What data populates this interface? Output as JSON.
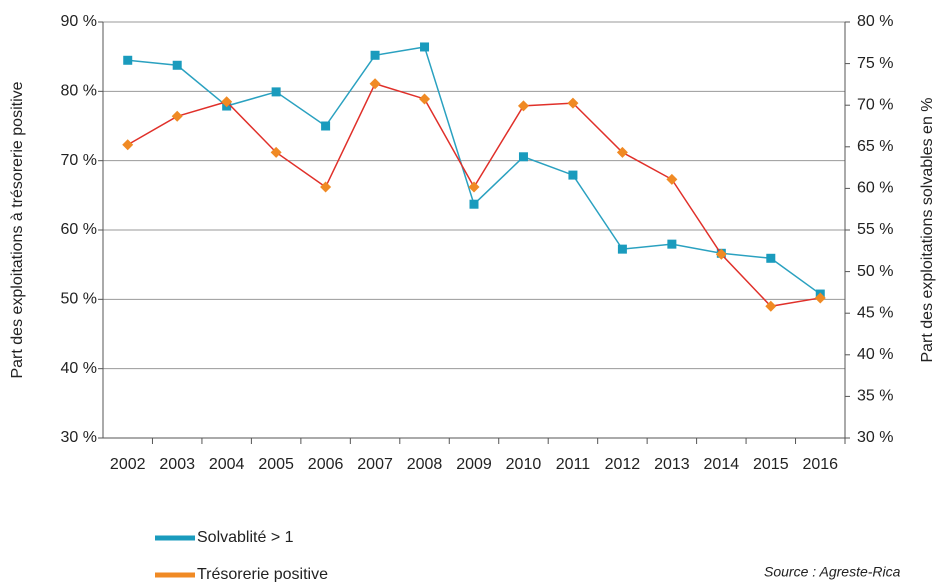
{
  "chart_data": {
    "type": "line",
    "y_label": "Part des exploitations à trésorerie positive",
    "y2_label": "Part des exploitations solvables en %",
    "source": "Source : Agreste-Rica",
    "categories": [
      "2002",
      "2003",
      "2004",
      "2005",
      "2006",
      "2007",
      "2008",
      "2009",
      "2010",
      "2011",
      "2012",
      "2013",
      "2014",
      "2015",
      "2016"
    ],
    "series": [
      {
        "name": "Solvablité > 1",
        "color": "#2aa1c0",
        "marker_color": "#1a9bbd",
        "marker": "square",
        "axis": "y2",
        "values": [
          75.4,
          74.8,
          69.9,
          71.6,
          67.5,
          76.0,
          77.0,
          58.1,
          63.8,
          61.6,
          52.7,
          53.3,
          52.2,
          51.6,
          47.3
        ]
      },
      {
        "name": "Trésorerie positive",
        "color": "#e0302a",
        "marker_color": "#f08a24",
        "marker": "diamond",
        "axis": "y",
        "values": [
          72.3,
          76.4,
          78.5,
          71.2,
          66.2,
          81.1,
          78.9,
          66.2,
          77.9,
          78.3,
          71.2,
          67.3,
          56.5,
          49.0,
          50.2
        ]
      }
    ],
    "ylim": [
      30,
      90
    ],
    "yticks": [
      {
        "value": 30,
        "label": "30 %"
      },
      {
        "value": 40,
        "label": "40 %"
      },
      {
        "value": 50,
        "label": "50 %"
      },
      {
        "value": 60,
        "label": "60 %"
      },
      {
        "value": 70,
        "label": "70 %"
      },
      {
        "value": 80,
        "label": "80 %"
      },
      {
        "value": 90,
        "label": "90 %"
      }
    ],
    "y2lim": [
      30,
      80
    ],
    "y2ticks": [
      {
        "value": 30,
        "label": "30 %"
      },
      {
        "value": 35,
        "label": "35 %"
      },
      {
        "value": 40,
        "label": "40 %"
      },
      {
        "value": 45,
        "label": "45 %"
      },
      {
        "value": 50,
        "label": "50 %"
      },
      {
        "value": 55,
        "label": "55 %"
      },
      {
        "value": 60,
        "label": "60 %"
      },
      {
        "value": 65,
        "label": "65 %"
      },
      {
        "value": 70,
        "label": "70 %"
      },
      {
        "value": 75,
        "label": "75 %"
      },
      {
        "value": 80,
        "label": "80 %"
      }
    ],
    "grid": true,
    "legend": "bottom-left"
  }
}
